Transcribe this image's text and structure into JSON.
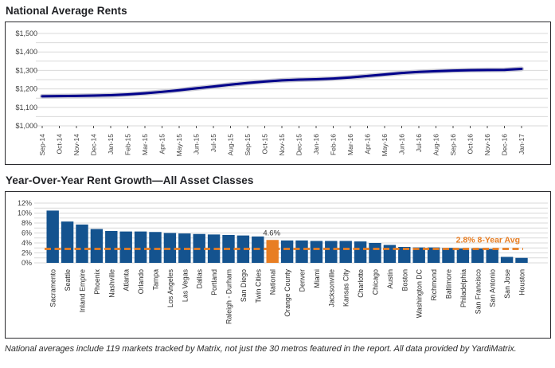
{
  "page": {
    "footer": "National averages include 119 markets tracked by Matrix, not just the 30 metros featured in the report. All data provided by YardiMatrix."
  },
  "chart_data": [
    {
      "type": "line",
      "title": "National Average Rents",
      "x": [
        "Sep-14",
        "Oct-14",
        "Nov-14",
        "Dec-14",
        "Jan-15",
        "Feb-15",
        "Mar-15",
        "Apr-15",
        "May-15",
        "Jun-15",
        "Jul-15",
        "Aug-15",
        "Sep-15",
        "Oct-15",
        "Nov-15",
        "Dec-15",
        "Jan-16",
        "Feb-16",
        "Mar-16",
        "Apr-16",
        "May-16",
        "Jun-16",
        "Jul-16",
        "Aug-16",
        "Sep-16",
        "Oct-16",
        "Nov-16",
        "Dec-16",
        "Jan-17"
      ],
      "values": [
        1160,
        1161,
        1162,
        1164,
        1166,
        1170,
        1176,
        1184,
        1193,
        1203,
        1213,
        1223,
        1232,
        1240,
        1246,
        1250,
        1252,
        1256,
        1262,
        1270,
        1278,
        1286,
        1292,
        1296,
        1299,
        1301,
        1302,
        1303,
        1308
      ],
      "ylim": [
        1000,
        1500
      ],
      "yticks": [
        1000,
        1100,
        1200,
        1300,
        1400,
        1500
      ],
      "ytick_labels": [
        "$1,000",
        "$1,100",
        "$1,200",
        "$1,300",
        "$1,400",
        "$1,500"
      ],
      "minor_step": 50,
      "grid": true,
      "legend": "none",
      "line_color": "#00008b",
      "glow_color": "#c9c9d4",
      "grid_color": "#d9d9d9",
      "tick_color": "#4d4d4d",
      "label_color": "#3f3f3f"
    },
    {
      "type": "bar",
      "title": "Year-Over-Year Rent Growth—All Asset Classes",
      "categories": [
        "Sacramento",
        "Seattle",
        "Inland Empire",
        "Phoenix",
        "Nashville",
        "Atlanta",
        "Orlando",
        "Tampa",
        "Los Angeles",
        "Las Vegas",
        "Dallas",
        "Portland",
        "Raleigh - Durham",
        "San Diego",
        "Twin Cities",
        "National",
        "Orange County",
        "Denver",
        "Miami",
        "Jacksonville",
        "Kansas City",
        "Charlotte",
        "Chicago",
        "Austin",
        "Boston",
        "Washington DC",
        "Richmond",
        "Baltimore",
        "Philadelphia",
        "San Francisco",
        "San Antonio",
        "San Jose",
        "Houston"
      ],
      "values": [
        10.5,
        8.3,
        7.7,
        6.8,
        6.4,
        6.3,
        6.3,
        6.2,
        6.0,
        5.9,
        5.8,
        5.7,
        5.6,
        5.5,
        5.3,
        4.6,
        4.5,
        4.5,
        4.4,
        4.4,
        4.4,
        4.3,
        4.0,
        3.6,
        3.2,
        3.1,
        3.1,
        3.0,
        2.9,
        2.9,
        2.8,
        1.2,
        1.0
      ],
      "ylim": [
        0,
        12
      ],
      "yticks": [
        0,
        2,
        4,
        6,
        8,
        10,
        12
      ],
      "ytick_labels": [
        "0%",
        "2%",
        "4%",
        "6%",
        "8%",
        "10%",
        "12%"
      ],
      "minor_step": 1,
      "grid": true,
      "legend": "none",
      "bar_color": "#14538f",
      "grid_color": "#d9d9d9",
      "label_color": "#3f3f3f",
      "category_label_color": "#2b2b2b",
      "highlight": {
        "category": "National",
        "color": "#e87e23",
        "label": "4.6%",
        "label_color": "#333333"
      },
      "avg_line": {
        "value": 2.8,
        "label": "2.8% 8-Year Avg",
        "color": "#e87e23"
      }
    }
  ]
}
